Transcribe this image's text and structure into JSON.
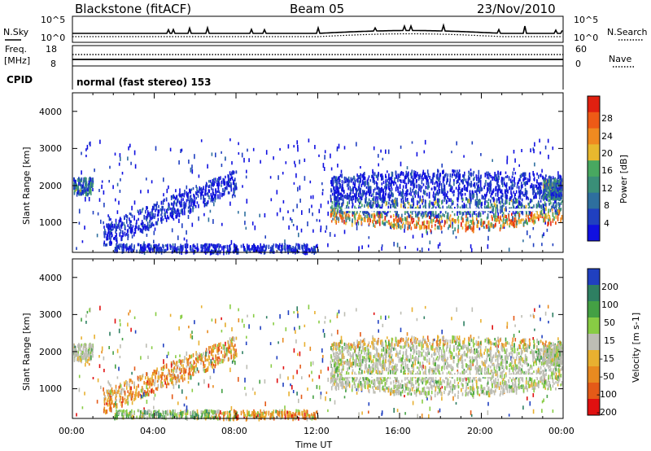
{
  "header": {
    "station": "Blackstone (fitACF)",
    "beam": "Beam 05",
    "date": "23/Nov/2010"
  },
  "top_strip": {
    "left_label": "N.Sky",
    "right_label": "N.Search",
    "left_ticks": [
      "10^5",
      "10^0"
    ],
    "right_ticks": [
      "10^5",
      "10^0"
    ]
  },
  "freq_strip": {
    "left_label_1": "Freq.",
    "left_label_2": "[MHz]",
    "right_label": "Nave",
    "left_ticks": [
      "18",
      "8"
    ],
    "right_ticks": [
      "60",
      "0"
    ]
  },
  "cpid": {
    "label": "CPID",
    "mode": "normal (fast stereo) 153"
  },
  "chart_data": [
    {
      "type": "heatmap",
      "name": "power",
      "ylabel": "Slant Range [km]",
      "y_ticks": [
        "4000",
        "3000",
        "2000",
        "1000"
      ],
      "ylim": [
        200,
        4500
      ],
      "colorbar": {
        "label": "Power [dB]",
        "ticks": [
          "28",
          "24",
          "20",
          "16",
          "12",
          "8",
          "4"
        ],
        "range": [
          0,
          30
        ],
        "colors": [
          "#1010e0",
          "#2040c0",
          "#2e6f9e",
          "#3a8f78",
          "#48a860",
          "#e8b82e",
          "#f08a20",
          "#ee5a16",
          "#e02010"
        ]
      }
    },
    {
      "type": "heatmap",
      "name": "velocity",
      "ylabel": "Slant Range [km]",
      "y_ticks": [
        "4000",
        "3000",
        "2000",
        "1000"
      ],
      "ylim": [
        200,
        4500
      ],
      "xlabel": "Time UT",
      "x_ticks": [
        "00:00",
        "04:00",
        "08:00",
        "12:00",
        "16:00",
        "20:00",
        "00:00"
      ],
      "colorbar": {
        "label": "Velocity [m s-1]",
        "ticks": [
          "200",
          "100",
          "50",
          "15",
          "-15",
          "-50",
          "-100",
          "-200"
        ],
        "colors": [
          "#2040c0",
          "#2e7f62",
          "#44a044",
          "#88cc44",
          "#bdbdb4",
          "#e8b030",
          "#e88a20",
          "#e45a18",
          "#e01010"
        ]
      }
    }
  ]
}
